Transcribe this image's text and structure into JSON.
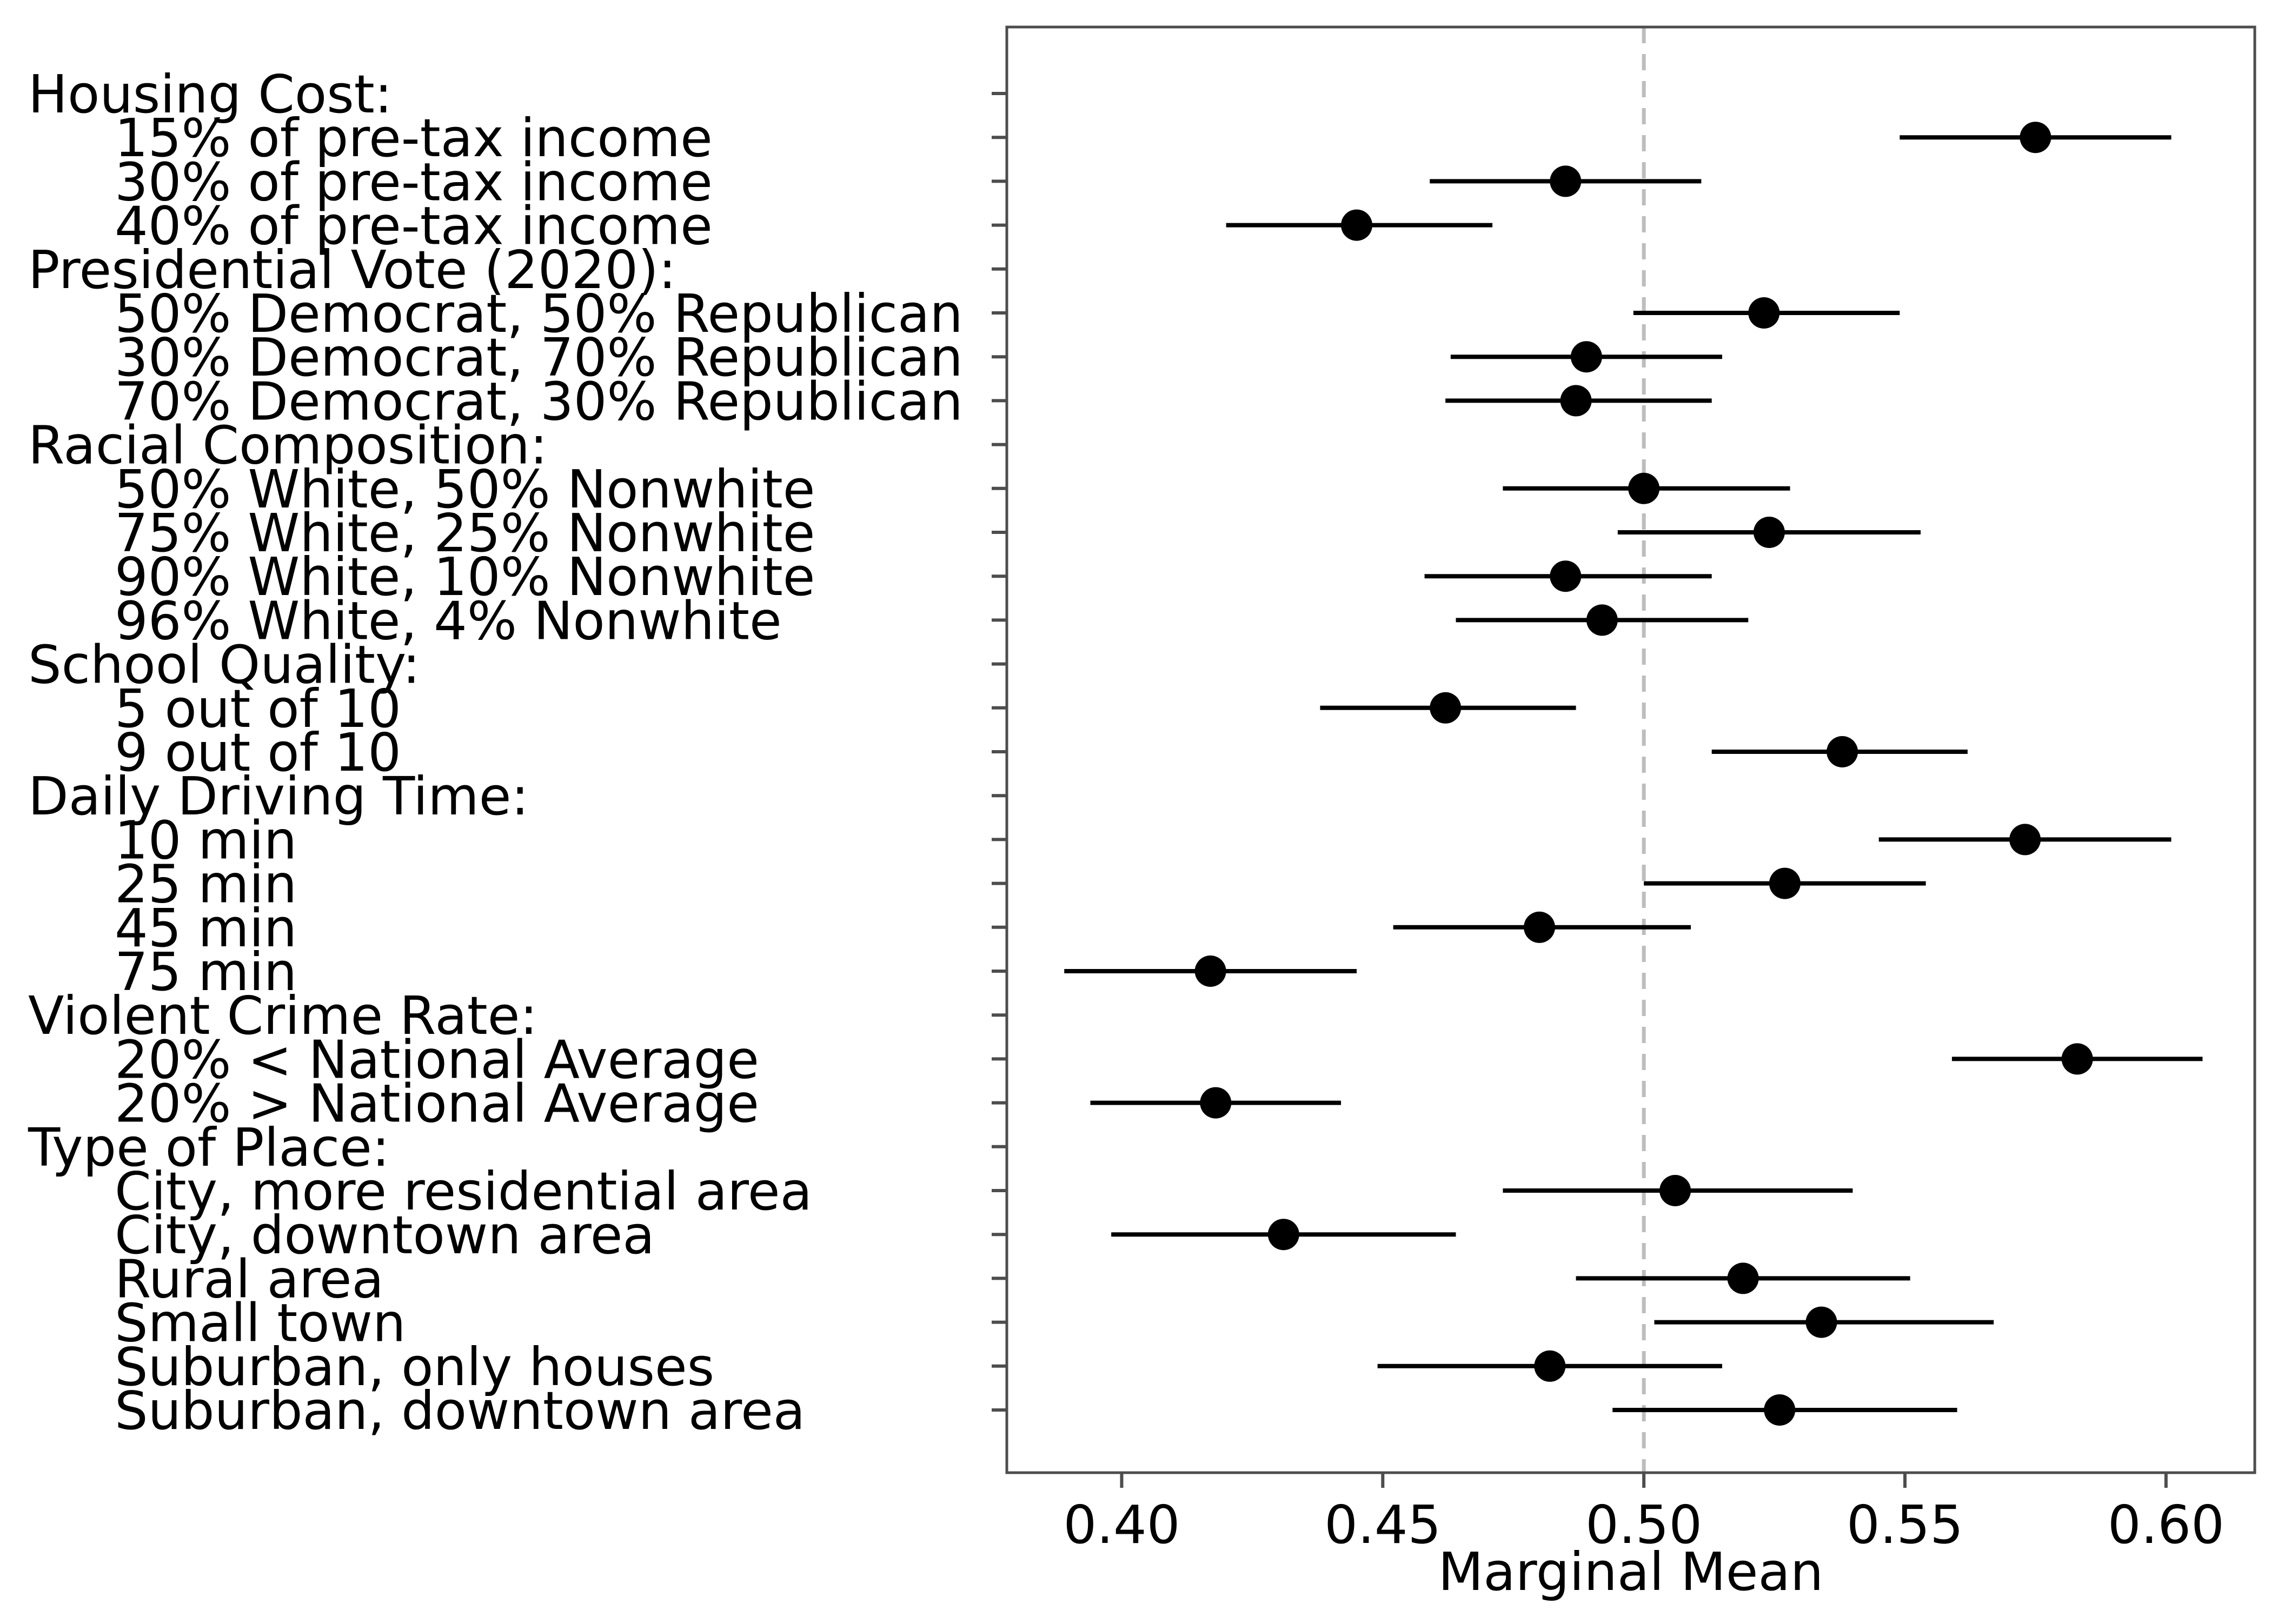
{
  "chart_data": {
    "type": "scatter",
    "subtype": "dot-and-whisker",
    "xlabel": "Marginal Mean",
    "xlim": [
      0.378,
      0.617
    ],
    "xticks": [
      0.4,
      0.45,
      0.5,
      0.55,
      0.6
    ],
    "xtick_labels": [
      "0.40",
      "0.45",
      "0.50",
      "0.55",
      "0.60"
    ],
    "reference_line": 0.5,
    "grid": false,
    "rows": [
      {
        "label": "Housing Cost:",
        "header": true
      },
      {
        "label": "15% of pre-tax income",
        "estimate": 0.575,
        "lower": 0.549,
        "upper": 0.601
      },
      {
        "label": "30% of pre-tax income",
        "estimate": 0.485,
        "lower": 0.459,
        "upper": 0.511
      },
      {
        "label": "40% of pre-tax income",
        "estimate": 0.445,
        "lower": 0.42,
        "upper": 0.471
      },
      {
        "label": "Presidential Vote (2020):",
        "header": true
      },
      {
        "label": "50% Democrat, 50% Republican",
        "estimate": 0.523,
        "lower": 0.498,
        "upper": 0.549
      },
      {
        "label": "30% Democrat, 70% Republican",
        "estimate": 0.489,
        "lower": 0.463,
        "upper": 0.515
      },
      {
        "label": "70% Democrat, 30% Republican",
        "estimate": 0.487,
        "lower": 0.462,
        "upper": 0.513
      },
      {
        "label": "Racial Composition:",
        "header": true
      },
      {
        "label": "50% White, 50% Nonwhite",
        "estimate": 0.5,
        "lower": 0.473,
        "upper": 0.528
      },
      {
        "label": "75% White, 25% Nonwhite",
        "estimate": 0.524,
        "lower": 0.495,
        "upper": 0.553
      },
      {
        "label": "90% White, 10% Nonwhite",
        "estimate": 0.485,
        "lower": 0.458,
        "upper": 0.513
      },
      {
        "label": "96% White, 4% Nonwhite",
        "estimate": 0.492,
        "lower": 0.464,
        "upper": 0.52
      },
      {
        "label": "School Quality:",
        "header": true
      },
      {
        "label": "5 out of 10",
        "estimate": 0.462,
        "lower": 0.438,
        "upper": 0.487
      },
      {
        "label": "9 out of 10",
        "estimate": 0.538,
        "lower": 0.513,
        "upper": 0.562
      },
      {
        "label": "Daily Driving Time:",
        "header": true
      },
      {
        "label": "10 min",
        "estimate": 0.573,
        "lower": 0.545,
        "upper": 0.601
      },
      {
        "label": "25 min",
        "estimate": 0.527,
        "lower": 0.5,
        "upper": 0.554
      },
      {
        "label": "45 min",
        "estimate": 0.48,
        "lower": 0.452,
        "upper": 0.509
      },
      {
        "label": "75 min",
        "estimate": 0.417,
        "lower": 0.389,
        "upper": 0.445
      },
      {
        "label": "Violent Crime Rate:",
        "header": true
      },
      {
        "label": "20% < National Average",
        "estimate": 0.583,
        "lower": 0.559,
        "upper": 0.607
      },
      {
        "label": "20% > National Average",
        "estimate": 0.418,
        "lower": 0.394,
        "upper": 0.442
      },
      {
        "label": "Type of Place:",
        "header": true
      },
      {
        "label": "City, more residential area",
        "estimate": 0.506,
        "lower": 0.473,
        "upper": 0.54
      },
      {
        "label": "City, downtown area",
        "estimate": 0.431,
        "lower": 0.398,
        "upper": 0.464
      },
      {
        "label": "Rural area",
        "estimate": 0.519,
        "lower": 0.487,
        "upper": 0.551
      },
      {
        "label": "Small town",
        "estimate": 0.534,
        "lower": 0.502,
        "upper": 0.567
      },
      {
        "label": "Suburban, only houses",
        "estimate": 0.482,
        "lower": 0.449,
        "upper": 0.515
      },
      {
        "label": "Suburban, downtown area",
        "estimate": 0.526,
        "lower": 0.494,
        "upper": 0.56
      }
    ]
  },
  "colors": {
    "point": "#000000",
    "whisker": "#000000",
    "reference_line": "#bdbdbd",
    "panel_border": "#4d4d4d",
    "tick": "#4d4d4d",
    "background": "#ffffff"
  }
}
